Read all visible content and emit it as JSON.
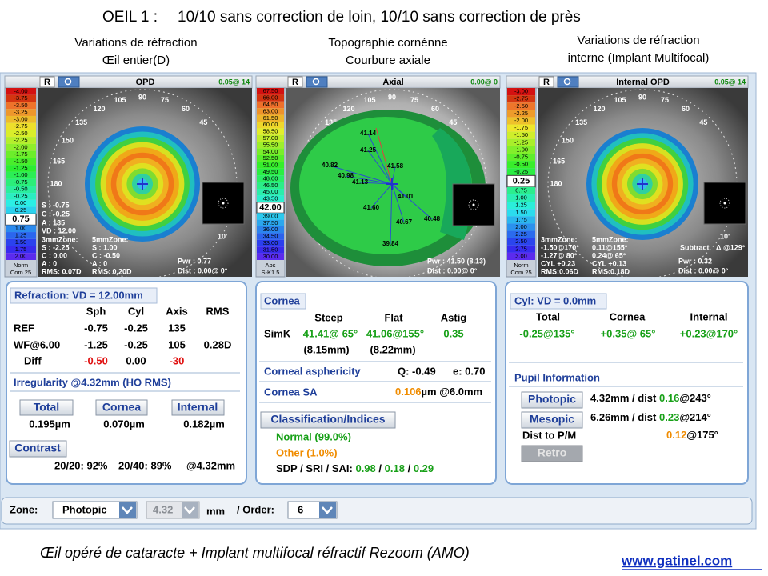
{
  "slide": {
    "title_eye": "OEIL 1 :",
    "title_text": "10/10 sans correction de loin, 10/10 sans correction de près",
    "captions": [
      [
        "Variations de réfraction",
        "Œil entier(D)"
      ],
      [
        "Topographie cornénne",
        "Courbure axiale"
      ],
      [
        "Variations de réfraction",
        "interne (Implant Multifocal)"
      ]
    ],
    "footer": "Œil opéré de cataracte  + Implant multifocal réfractif Rezoom (AMO)",
    "link": "www.gatinel.com"
  },
  "map_angles": [
    "90",
    "75",
    "60",
    "45",
    "105",
    "120",
    "135",
    "150",
    "165",
    "180"
  ],
  "maps": [
    {
      "eye": "R",
      "title": "OPD",
      "corner": "0.05@ 14",
      "scale_upper": [
        "-4.00",
        "-3.75",
        "-3.50",
        "-3.25",
        "-3.00",
        "-2.75",
        "-2.50",
        "-2.25",
        "-2.00",
        "-1.75",
        "-1.50",
        "-1.25",
        "-1.00",
        "-0.75",
        "-0.50",
        "-0.25",
        "0.00",
        "0.25"
      ],
      "selected": "0.75",
      "scale_lower": [
        "1.00",
        "1.25",
        "1.50",
        "1.75",
        "2.00"
      ],
      "scale_footer": [
        "Norm",
        "Com 25"
      ],
      "overlay": [
        "S : -0.75",
        "C : -0.25",
        "A : 135",
        "VD : 12.00",
        "3mmZone:",
        "S : -2.25",
        "C : 0.00",
        "A : 0",
        "RMS: 0.07D",
        "5mmZone:",
        "S : 1.00",
        "C : -0.50",
        "A : 0",
        "RMS: 0.20D",
        "Pwr : 0.77",
        "Dist : 0.00@ 0°",
        "10'"
      ]
    },
    {
      "eye": "R",
      "title": "Axial",
      "corner": "0.00@ 0",
      "scale_upper": [
        "67.50",
        "66.00",
        "64.50",
        "63.00",
        "61.50",
        "60.00",
        "58.50",
        "57.00",
        "55.50",
        "54.00",
        "52.50",
        "51.00",
        "49.50",
        "48.00",
        "46.50",
        "45.00",
        "43.50"
      ],
      "selected": "42.00",
      "scale_lower": [
        "39.00",
        "37.50",
        "36.00",
        "34.50",
        "33.00",
        "31.50",
        "30.00"
      ],
      "scale_footer": [
        "Abs",
        "S-K1.5"
      ],
      "overlay": [
        "41.14",
        "41.25",
        "40.82",
        "40.98",
        "41.13",
        "41.58",
        "41.01",
        "41.60",
        "40.67",
        "40.48",
        "39.84",
        "Pwr : 41.50 (8.13)",
        "Dist : 0.00@ 0°"
      ]
    },
    {
      "eye": "R",
      "title": "Internal OPD",
      "corner": "0.05@ 14",
      "scale_upper": [
        "-3.00",
        "-2.75",
        "-2.50",
        "-2.25",
        "-2.00",
        "-1.75",
        "-1.50",
        "-1.25",
        "-1.00",
        "-0.75",
        "-0.50",
        "-0.25"
      ],
      "selected": "0.25",
      "scale_lower": [
        "0.75",
        "1.00",
        "1.25",
        "1.50",
        "1.75",
        "2.00",
        "2.25",
        "2.50",
        "2.75",
        "3.00"
      ],
      "scale_footer": [
        "Norm",
        "Com 25"
      ],
      "overlay": [
        "3mmZone:",
        "-1.50@170°",
        "-1.27@ 80°",
        "CYL +0.23",
        "RMS:0.06D",
        "5mmZone:",
        "0.11@155°",
        "0.24@ 65°",
        "CYL +0.13",
        "RMS:0.18D",
        "Subtract",
        "Δ @129°",
        "Pwr : 0.32",
        "Dist : 0.00@ 0°",
        "10'"
      ]
    }
  ],
  "refraction": {
    "header": "Refraction: VD = 12.00mm",
    "columns": [
      "Sph",
      "Cyl",
      "Axis",
      "RMS"
    ],
    "rows": [
      [
        "REF",
        "-0.75",
        "-0.25",
        "135"
      ],
      [
        "WF@6.00",
        "-1.25",
        "-0.25",
        "105",
        "0.28D"
      ],
      [
        "Diff",
        "-0.50",
        "0.00",
        "-30"
      ]
    ],
    "irregularity": "Irregularity @4.32mm (HO RMS)",
    "buttons": [
      "Total",
      "Cornea",
      "Internal"
    ],
    "values": [
      "0.195µm",
      "0.070µm",
      "0.182µm"
    ],
    "contrast": "Contrast",
    "contrast_values": [
      "20/20: 92%",
      "20/40: 89%",
      "@4.32mm"
    ]
  },
  "cornea": {
    "header": "Cornea",
    "columns": [
      "Steep",
      "Flat",
      "Astig"
    ],
    "simk_label": "SimK",
    "simk": [
      "41.41@ 65°",
      "41.06@155°",
      "0.35"
    ],
    "radii": [
      "(8.15mm)",
      "(8.22mm)"
    ],
    "asphericity": "Corneal asphericity",
    "q": "Q: -0.49",
    "e": "e: 0.70",
    "sa": "Cornea SA",
    "sa_value": "0.106",
    "sa_unit": "µm @6.0mm",
    "classification": "Classification/Indices",
    "normal": "Normal (99.0%)",
    "other": "Other (1.0%)",
    "indices_label": "SDP / SRI / SAI:",
    "indices": [
      "0.98",
      "0.18",
      "0.29"
    ],
    "separator": "/"
  },
  "cyl": {
    "header": "Cyl: VD = 0.0mm",
    "columns": [
      "Total",
      "Cornea",
      "Internal"
    ],
    "values": [
      "-0.25@135°",
      "+0.35@ 65°",
      "+0.23@170°"
    ],
    "pupil": "Pupil Information",
    "photopic": "Photopic",
    "photopic_text": "4.32mm / dist",
    "photopic_value": "0.16",
    "photopic_axis": "@243°",
    "mesopic": "Mesopic",
    "mesopic_text": "6.26mm / dist",
    "mesopic_value": "0.23",
    "mesopic_axis": "@214°",
    "dist_label": "Dist to P/M",
    "dist_value": "0.12",
    "dist_axis": "@175°",
    "retro": "Retro"
  },
  "toolbar": {
    "zone_label": "Zone:",
    "zone": "Photopic",
    "size": "4.32",
    "unit": "mm",
    "order_label": "/ Order:",
    "order": "6"
  }
}
